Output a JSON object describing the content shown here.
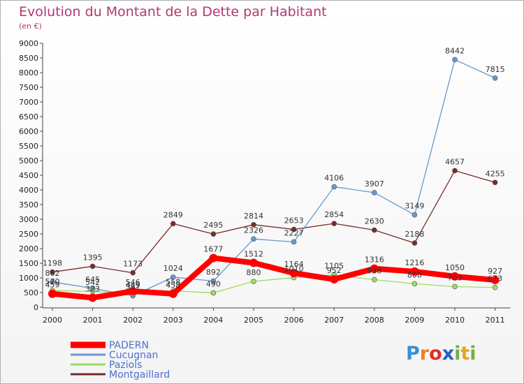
{
  "header": {
    "title": "Evolution du Montant de la Dette par Habitant",
    "subtitle": "(en €)"
  },
  "logo": {
    "text": "Proxiti"
  },
  "chart_data": {
    "type": "line",
    "categories": [
      "2000",
      "2001",
      "2002",
      "2003",
      "2004",
      "2005",
      "2006",
      "2007",
      "2008",
      "2009",
      "2010",
      "2011"
    ],
    "ylim": [
      0,
      9000
    ],
    "yticks": [
      0,
      500,
      1000,
      1500,
      2000,
      2500,
      3000,
      3500,
      4000,
      4500,
      5000,
      5500,
      6000,
      6500,
      7000,
      7500,
      8000,
      8500,
      9000
    ],
    "grid": false,
    "legend_position": "bottom-left",
    "series": [
      {
        "name": "PADERN",
        "color": "#ff0000",
        "labels": [
          "459",
          "323",
          "546",
          "458",
          "1677",
          "1512",
          "1164",
          "952",
          "1316",
          "1216",
          "1050",
          "927"
        ],
        "values": [
          459,
          323,
          546,
          458,
          1677,
          1512,
          1164,
          952,
          1316,
          1216,
          1050,
          927
        ]
      },
      {
        "name": "Cucugnan",
        "color": "#6699cc",
        "labels": [
          "862",
          "645",
          "387",
          "1024",
          "892",
          "2326",
          "2227",
          "4106",
          "3907",
          "3149",
          "8442",
          "7815"
        ],
        "values": [
          862,
          645,
          387,
          1024,
          892,
          2326,
          2227,
          4106,
          3907,
          3149,
          8442,
          7815
        ]
      },
      {
        "name": "Paziols",
        "color": "#99dd66",
        "labels": [
          "570",
          "542",
          "449",
          "558",
          "490",
          "880",
          "1010",
          "1105",
          "938",
          "800",
          "703",
          "673"
        ],
        "values": [
          570,
          542,
          449,
          558,
          490,
          880,
          1010,
          1105,
          938,
          800,
          703,
          673
        ]
      },
      {
        "name": "Montgaillard",
        "color": "#7a2a2a",
        "labels": [
          "1198",
          "1395",
          "1173",
          "2849",
          "2495",
          "2814",
          "2653",
          "2854",
          "2630",
          "2188",
          "4657",
          "4255"
        ],
        "values": [
          1198,
          1395,
          1173,
          2849,
          2495,
          2814,
          2653,
          2854,
          2630,
          2188,
          4657,
          4255
        ]
      }
    ]
  }
}
